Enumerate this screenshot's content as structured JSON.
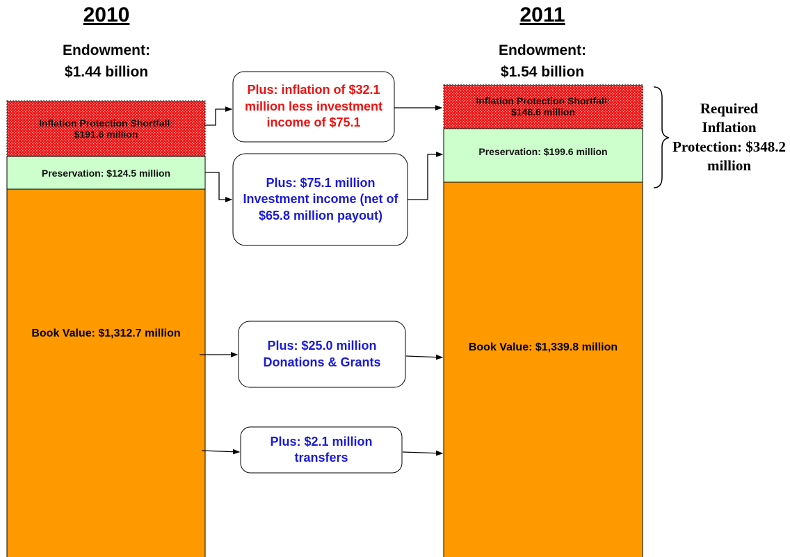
{
  "columns": [
    {
      "year": "2010",
      "endowment_label": "Endowment:",
      "endowment_value": "$1.44 billion",
      "segments": {
        "inflation_shortfall": "Inflation Protection Shortfall: $191.6 million",
        "preservation": "Preservation: $124.5 million",
        "book_value": "Book Value: $1,312.7 million"
      }
    },
    {
      "year": "2011",
      "endowment_label": "Endowment:",
      "endowment_value": "$1.54 billion",
      "segments": {
        "inflation_shortfall": "Inflation Protection Shortfall: $148.6 million",
        "preservation": "Preservation: $199.6 million",
        "book_value": "Book Value: $1,339.8 million"
      }
    }
  ],
  "flows": [
    "Plus: inflation of $32.1 million less investment income of $75.1",
    "Plus: $75.1 million Investment income (net of $65.8 million payout)",
    "Plus: $25.0 million Donations & Grants",
    "Plus: $2.1 million transfers"
  ],
  "bracket_label": "Required Inflation Protection: $348.2 million"
}
